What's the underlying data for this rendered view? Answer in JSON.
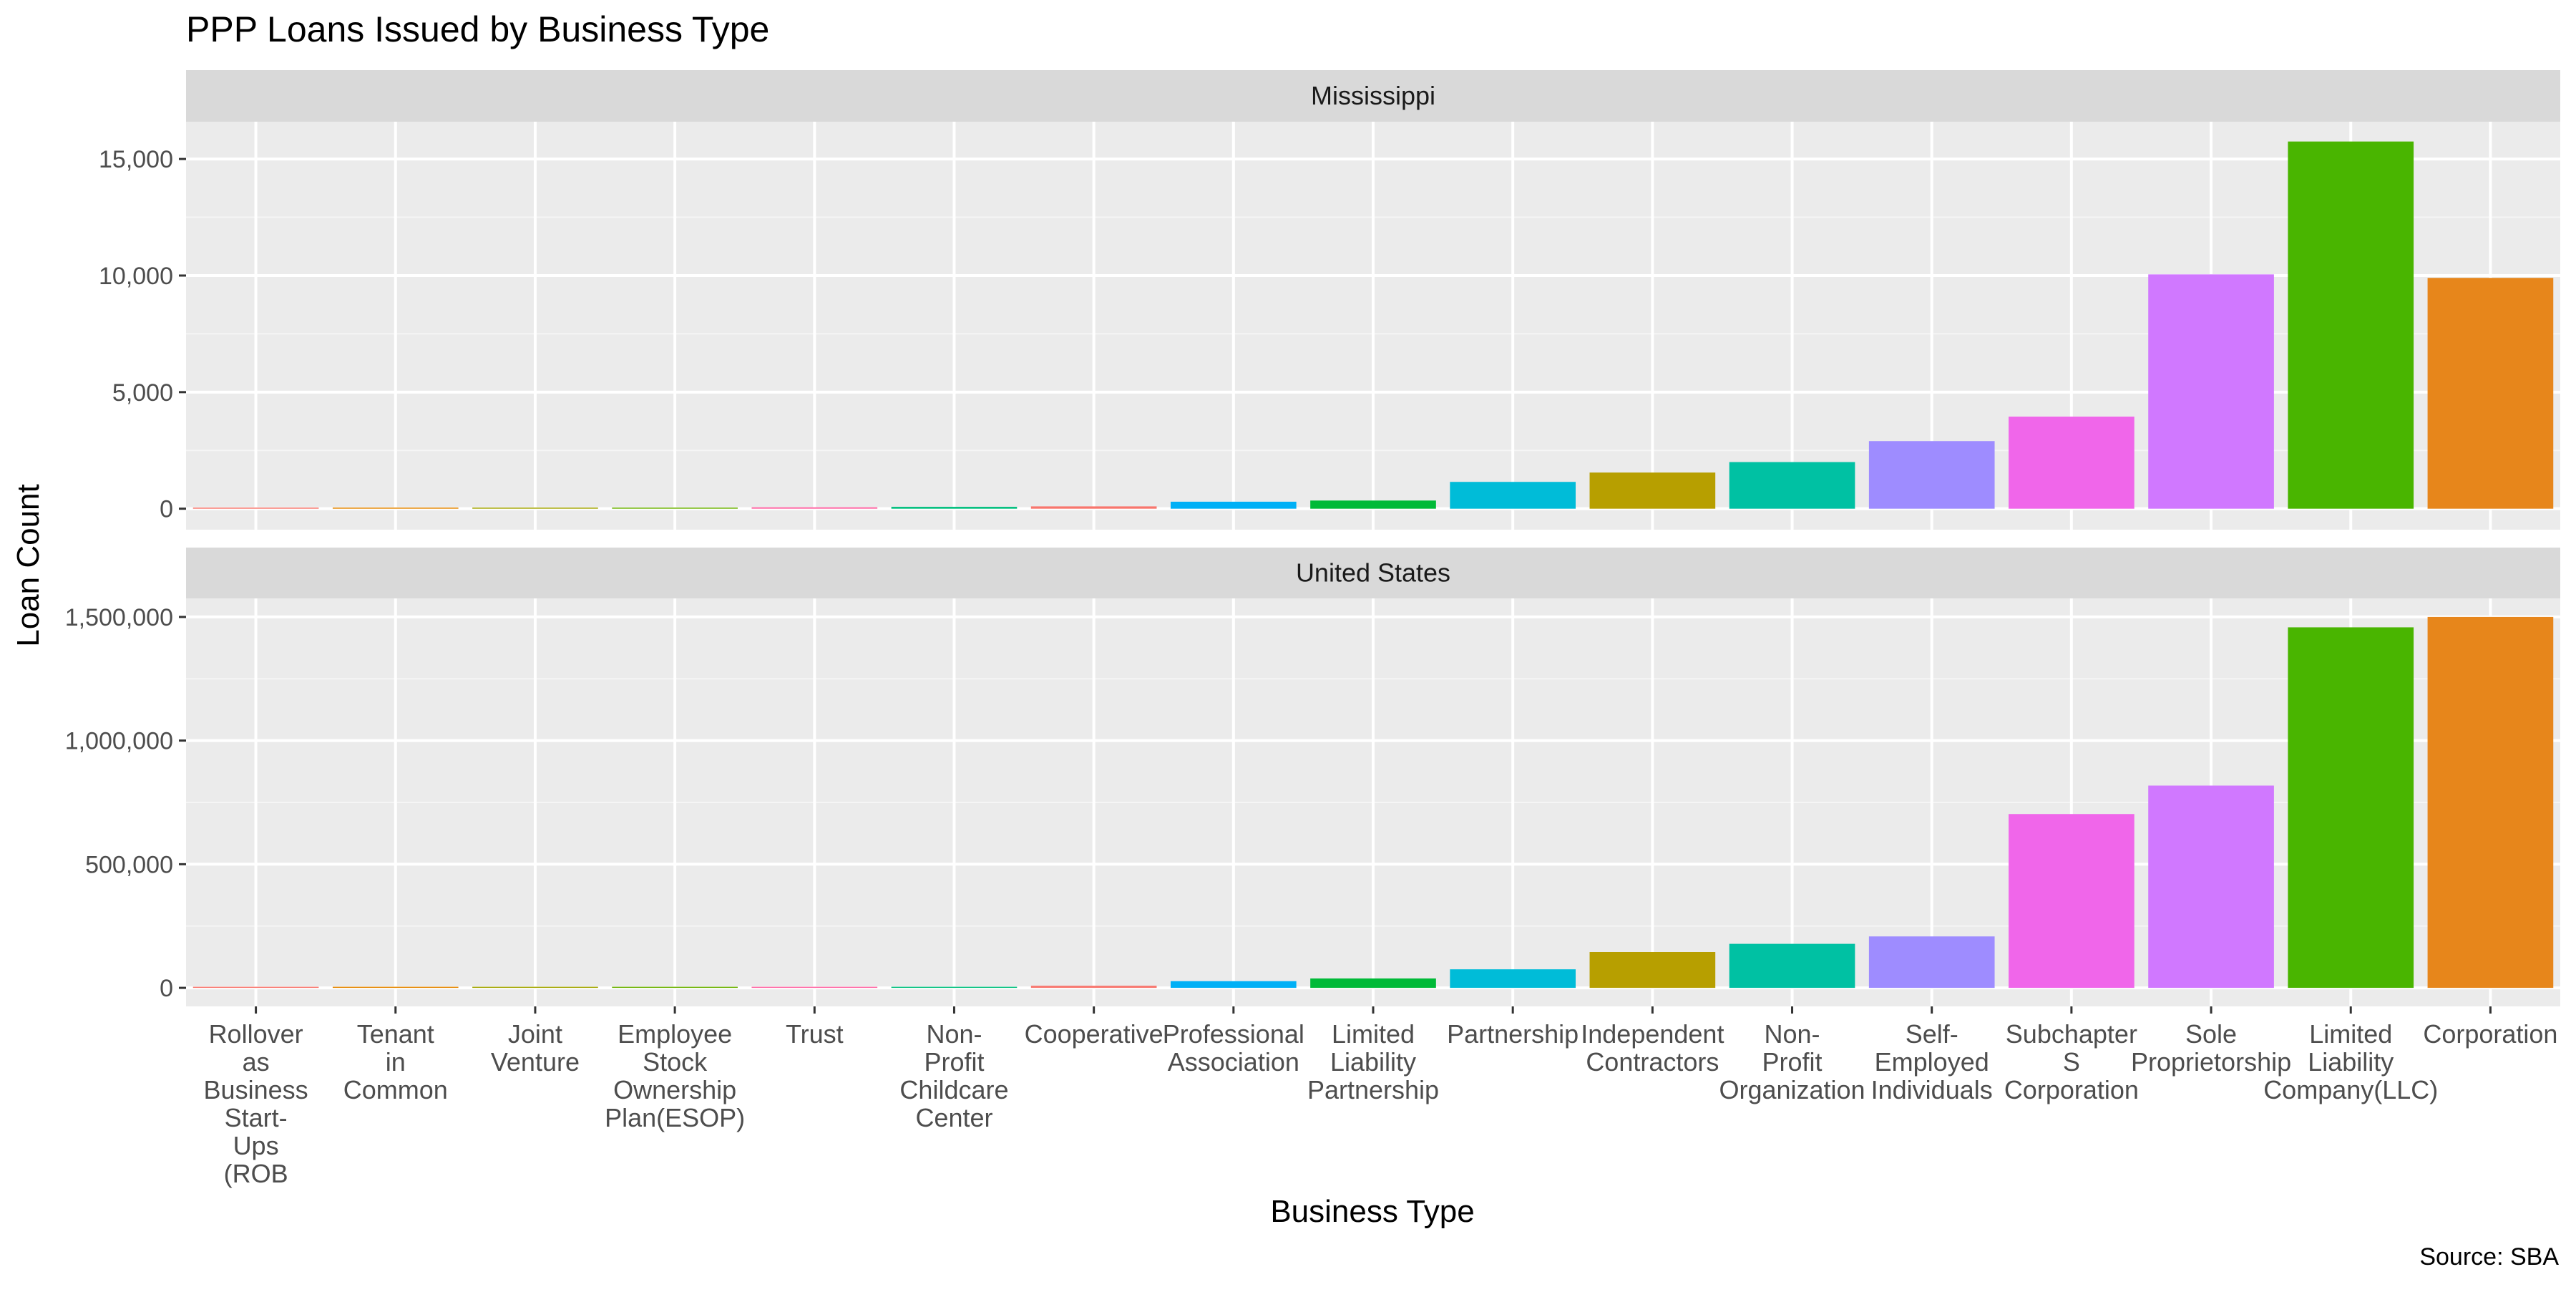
{
  "chart_data": {
    "type": "bar",
    "title": "PPP Loans Issued by Business Type",
    "xlabel": "Business Type",
    "ylabel": "Loan Count",
    "caption": "Source: SBA",
    "legend": "none",
    "grid": true,
    "categories": [
      "Rollover as Business Start-Ups (ROB",
      "Tenant in Common",
      "Joint Venture",
      "Employee Stock Ownership Plan(ESOP)",
      "Trust",
      "Non-Profit Childcare Center",
      "Cooperative",
      "Professional Association",
      "Limited Liability Partnership",
      "Partnership",
      "Independent Contractors",
      "Non-Profit Organization",
      "Self-Employed Individuals",
      "Subchapter S Corporation",
      "Sole Proprietorship",
      "Limited Liability Company(LLC)",
      "Corporation"
    ],
    "category_lines": [
      [
        "Rollover",
        "as",
        "Business",
        "Start-",
        "Ups",
        "(ROB"
      ],
      [
        "Tenant",
        "in",
        "Common"
      ],
      [
        "Joint",
        "Venture"
      ],
      [
        "Employee",
        "Stock",
        "Ownership",
        "Plan(ESOP)"
      ],
      [
        "Trust"
      ],
      [
        "Non-",
        "Profit",
        "Childcare",
        "Center"
      ],
      [
        "Cooperative"
      ],
      [
        "Professional",
        "Association"
      ],
      [
        "Limited",
        "Liability",
        "Partnership"
      ],
      [
        "Partnership"
      ],
      [
        "Independent",
        "Contractors"
      ],
      [
        "Non-",
        "Profit",
        "Organization"
      ],
      [
        "Self-",
        "Employed",
        "Individuals"
      ],
      [
        "Subchapter",
        "S",
        "Corporation"
      ],
      [
        "Sole",
        "Proprietorship"
      ],
      [
        "Limited",
        "Liability",
        "Company(LLC)"
      ],
      [
        "Corporation"
      ]
    ],
    "colors": [
      "#F8766D",
      "#E58700",
      "#C99800",
      "#A3A500",
      "#6BB100",
      "#00BA38",
      "#00BF7D",
      "#00C0AF",
      "#00BCD8",
      "#00B0F6",
      "#619CFF",
      "#B983FF",
      "#E76BF3",
      "#FD61D1",
      "#FF67A4",
      "#00C1A3",
      "#F8766D"
    ],
    "bar_colors": [
      "#F8766D",
      "#E58700",
      "#A3A500",
      "#6BB100",
      "#FF67A4",
      "#00BF7D",
      "#F8766D",
      "#00B0F6",
      "#00BA38",
      "#00BCD8",
      "#B79F00",
      "#00C1A3",
      "#9E8CFF",
      "#F066EA",
      "#D078FF",
      "#49B500",
      "#E7861B"
    ],
    "panels": [
      {
        "name": "Mississippi",
        "ylim": [
          -900,
          16600
        ],
        "yticks": [
          0,
          5000,
          10000,
          15000
        ],
        "ytick_labels": [
          "0",
          "5,000",
          "10,000",
          "15,000"
        ],
        "values": [
          1,
          2,
          40,
          5,
          60,
          80,
          100,
          300,
          350,
          1150,
          1550,
          2000,
          2900,
          3950,
          10050,
          15750,
          9900
        ]
      },
      {
        "name": "United States",
        "ylim": [
          -75000,
          1575000
        ],
        "yticks": [
          0,
          500000,
          1000000,
          1500000
        ],
        "ytick_labels": [
          "0",
          "500,000",
          "1,000,000",
          "1,500,000"
        ],
        "values": [
          100,
          600,
          900,
          800,
          1800,
          3000,
          8500,
          27000,
          38000,
          75000,
          145000,
          178000,
          208000,
          703000,
          818000,
          1458000,
          1500000
        ]
      }
    ]
  }
}
